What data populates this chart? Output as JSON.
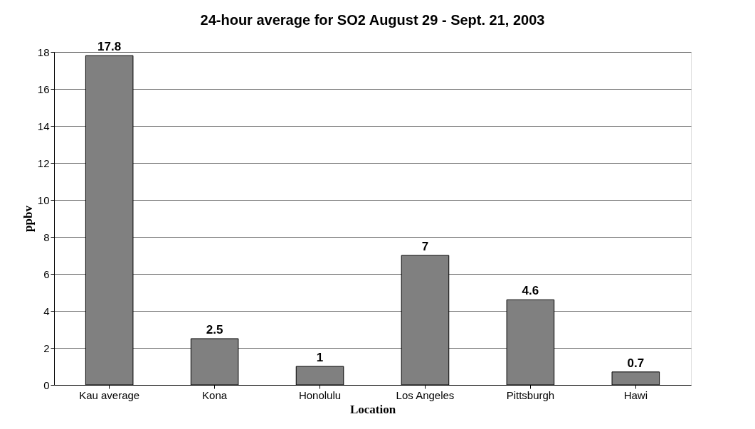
{
  "chart_data": {
    "type": "bar",
    "title": "24-hour average for SO2 August 29 - Sept. 21, 2003",
    "xlabel": "Location",
    "ylabel": "ppbv",
    "categories": [
      "Kau average",
      "Kona",
      "Honolulu",
      "Los Angeles",
      "Pittsburgh",
      "Hawi"
    ],
    "values": [
      17.8,
      2.5,
      1,
      7,
      4.6,
      0.7
    ],
    "color": "#808080",
    "ylim": [
      0,
      18
    ],
    "yticks": [
      0,
      2,
      4,
      6,
      8,
      10,
      12,
      14,
      16,
      18
    ],
    "grid": "y",
    "data_labels": true
  }
}
